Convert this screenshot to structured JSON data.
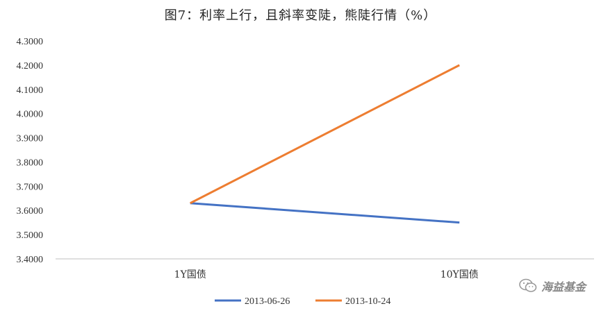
{
  "chart_data": {
    "type": "line",
    "title": "图7：利率上行，且斜率变陡，熊陡行情（%）",
    "categories": [
      "1Y国债",
      "10Y国债"
    ],
    "series": [
      {
        "name": "2013-06-26",
        "values": [
          3.63,
          3.55
        ],
        "color": "#4472C4"
      },
      {
        "name": "2013-10-24",
        "values": [
          3.63,
          4.2
        ],
        "color": "#ED7D31"
      }
    ],
    "ylim": [
      3.4,
      4.3
    ],
    "yticks": [
      "4.3000",
      "4.2000",
      "4.1000",
      "4.0000",
      "3.9000",
      "3.8000",
      "3.7000",
      "3.6000",
      "3.5000",
      "3.4000"
    ],
    "grid": false,
    "legend_position": "bottom"
  },
  "watermark": {
    "text": "海益基金",
    "icon": "wechat-icon"
  }
}
